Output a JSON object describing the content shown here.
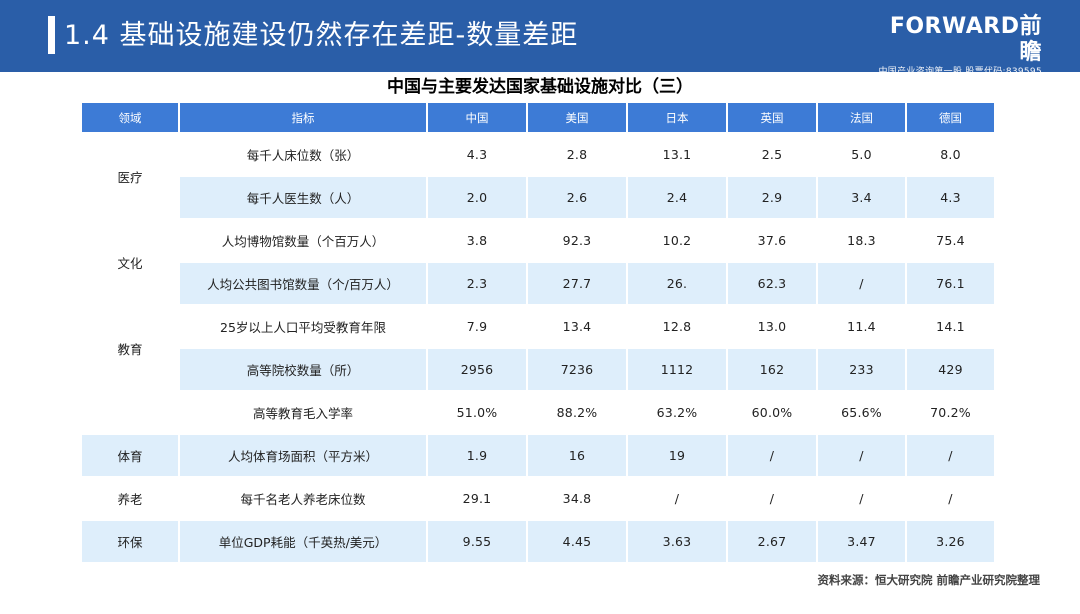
{
  "header": {
    "title": "1.4 基础设施建设仍然存在差距-数量差距"
  },
  "brand": {
    "name": "FORWARD前瞻",
    "tagline": "中国产业咨询第一股 股票代码:839595"
  },
  "table": {
    "title": "中国与主要发达国家基础设施对比（三）",
    "columns": [
      "领域",
      "指标",
      "中国",
      "美国",
      "日本",
      "英国",
      "法国",
      "德国"
    ],
    "groups": [
      {
        "domain": "医疗",
        "rows": [
          {
            "indicator": "每千人床位数（张）",
            "values": [
              "4.3",
              "2.8",
              "13.1",
              "2.5",
              "5.0",
              "8.0"
            ]
          },
          {
            "indicator": "每千人医生数（人）",
            "values": [
              "2.0",
              "2.6",
              "2.4",
              "2.9",
              "3.4",
              "4.3"
            ]
          }
        ]
      },
      {
        "domain": "文化",
        "rows": [
          {
            "indicator": "人均博物馆数量（个百万人）",
            "values": [
              "3.8",
              "92.3",
              "10.2",
              "37.6",
              "18.3",
              "75.4"
            ]
          },
          {
            "indicator": "人均公共图书馆数量（个/百万人）",
            "values": [
              "2.3",
              "27.7",
              "26.",
              "62.3",
              "/",
              "76.1"
            ]
          }
        ]
      },
      {
        "domain": "教育",
        "rows": [
          {
            "indicator": "25岁以上人口平均受教育年限",
            "values": [
              "7.9",
              "13.4",
              "12.8",
              "13.0",
              "11.4",
              "14.1"
            ]
          },
          {
            "indicator": "高等院校数量（所）",
            "values": [
              "2956",
              "7236",
              "1112",
              "162",
              "233",
              "429"
            ]
          },
          {
            "indicator": "高等教育毛入学率",
            "values": [
              "51.0%",
              "88.2%",
              "63.2%",
              "60.0%",
              "65.6%",
              "70.2%"
            ]
          }
        ]
      },
      {
        "domain": "体育",
        "rows": [
          {
            "indicator": "人均体育场面积（平方米）",
            "values": [
              "1.9",
              "16",
              "19",
              "/",
              "/",
              "/"
            ]
          }
        ]
      },
      {
        "domain": "养老",
        "rows": [
          {
            "indicator": "每千名老人养老床位数",
            "values": [
              "29.1",
              "34.8",
              "/",
              "/",
              "/",
              "/"
            ]
          }
        ]
      },
      {
        "domain": "环保",
        "rows": [
          {
            "indicator": "单位GDP耗能（千英热/美元）",
            "values": [
              "9.55",
              "4.45",
              "3.63",
              "2.67",
              "3.47",
              "3.26"
            ]
          }
        ]
      }
    ]
  },
  "source": "资料来源：恒大研究院 前瞻产业研究院整理",
  "colors": {
    "header_bg": "#2a5ea8",
    "table_header_bg": "#3d7bd6",
    "row_light_bg": "#deeefb"
  }
}
